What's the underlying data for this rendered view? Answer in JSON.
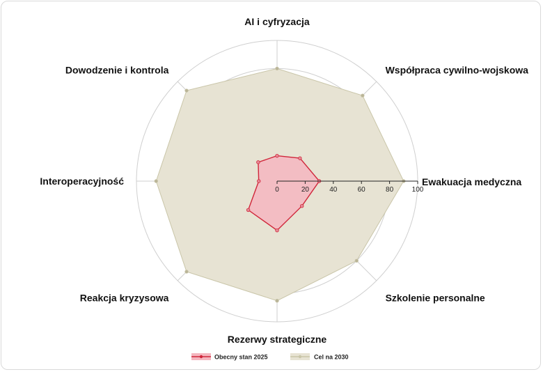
{
  "chart_data": {
    "type": "radar",
    "title": "",
    "axes": [
      "Ewakuacja medyczna",
      "Współpraca cywilno-wojskowa",
      "AI i cyfryzacja",
      "Dowodzenie i kontrola",
      "Interoperacyjność",
      "Reakcja kryzysowa",
      "Rezerwy strategiczne",
      "Szkolenie personalne"
    ],
    "radial_ticks": [
      "0",
      "20",
      "40",
      "60",
      "80",
      "100"
    ],
    "rmax": 100,
    "grid": true,
    "legend_position": "bottom",
    "series": [
      {
        "name": "Obecny stan 2025",
        "color": "#d0263a",
        "fill": "#f4b6bf",
        "values": {
          "Ewakuacja medyczna": 30,
          "Współpraca cywilno-wojskowa": 23,
          "AI i cyfryzacja": 18,
          "Dowodzenie i kontrola": 19,
          "Interoperacyjność": 13,
          "Reakcja kryzysowa": 29,
          "Rezerwy strategiczne": 35,
          "Szkolenie personalne": 25
        }
      },
      {
        "name": "Cel na 2030",
        "color": "#c9c5a8",
        "fill": "#e7e3d3",
        "values": {
          "Ewakuacja medyczna": 90,
          "Współpraca cywilno-wojskowa": 86,
          "AI i cyfryzacja": 80,
          "Dowodzenie i kontrola": 91,
          "Interoperacyjność": 86,
          "Reakcja kryzysowa": 91,
          "Rezerwy strategiczne": 85,
          "Szkolenie personalne": 80
        }
      }
    ]
  }
}
